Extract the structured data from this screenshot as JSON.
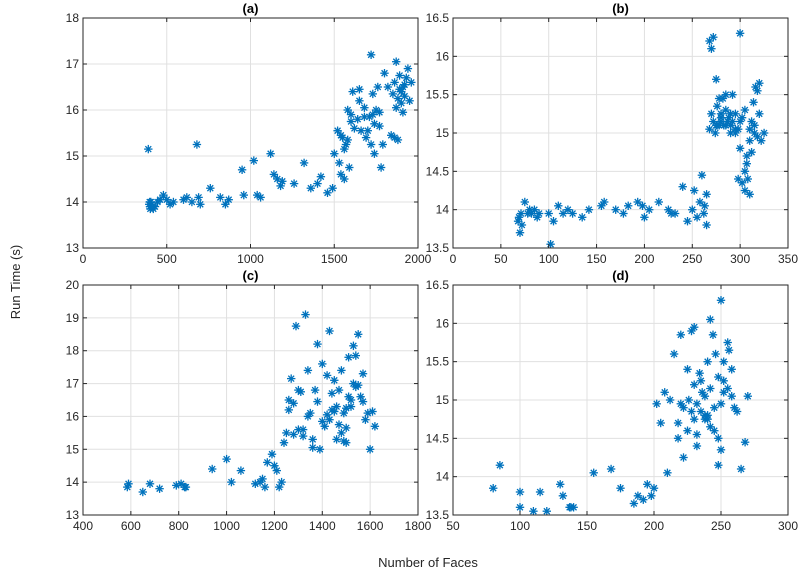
{
  "figure": {
    "ylabel": "Run Time (s)",
    "xlabel": "Number of Faces"
  },
  "chart_data": [
    {
      "type": "scatter",
      "title": "(a)",
      "xlim": [
        0,
        2000
      ],
      "ylim": [
        13,
        18
      ],
      "xticks": [
        0,
        500,
        1000,
        1500,
        2000
      ],
      "yticks": [
        13,
        14,
        15,
        16,
        17,
        18
      ],
      "grid": true,
      "x": [
        390,
        395,
        398,
        400,
        402,
        405,
        410,
        420,
        430,
        445,
        460,
        480,
        500,
        520,
        540,
        600,
        620,
        650,
        680,
        700,
        690,
        760,
        820,
        850,
        870,
        950,
        960,
        1020,
        1040,
        1060,
        1120,
        1140,
        1160,
        1180,
        1190,
        1260,
        1320,
        1360,
        1400,
        1420,
        1460,
        1490,
        1500,
        1520,
        1530,
        1540,
        1550,
        1560,
        1570,
        1580,
        1590,
        1600,
        1610,
        1620,
        1640,
        1650,
        1660,
        1680,
        1690,
        1700,
        1710,
        1720,
        1730,
        1740,
        1750,
        1760,
        1770,
        1780,
        1790,
        1800,
        1820,
        1840,
        1850,
        1860,
        1870,
        1880,
        1890,
        1900,
        1910,
        1920,
        1930,
        1940,
        1950,
        1960,
        1880,
        1900,
        1920,
        1860,
        1870,
        1890,
        1910,
        1730,
        1770,
        1740,
        1650,
        1680,
        1720,
        1600,
        1560,
        1540,
        1580
      ],
      "y": [
        15.15,
        13.95,
        14.0,
        13.9,
        13.85,
        14.0,
        13.95,
        13.85,
        13.9,
        14.0,
        14.05,
        14.15,
        14.05,
        13.95,
        14.0,
        14.05,
        14.1,
        14.0,
        15.25,
        13.95,
        14.1,
        14.3,
        14.1,
        13.95,
        14.05,
        14.7,
        14.15,
        14.9,
        14.15,
        14.1,
        15.05,
        14.6,
        14.5,
        14.35,
        14.45,
        14.4,
        14.85,
        14.3,
        14.4,
        14.55,
        14.2,
        14.3,
        15.05,
        15.55,
        14.85,
        14.6,
        15.4,
        14.5,
        15.25,
        15.35,
        14.75,
        15.75,
        16.4,
        15.6,
        15.8,
        16.45,
        15.55,
        16.05,
        15.4,
        15.55,
        15.85,
        17.2,
        15.9,
        15.7,
        16.0,
        16.5,
        15.95,
        14.75,
        15.25,
        16.8,
        16.5,
        15.45,
        16.35,
        16.6,
        17.05,
        16.25,
        16.75,
        16.4,
        16.5,
        16.55,
        16.7,
        16.9,
        16.2,
        16.6,
        15.35,
        16.15,
        16.3,
        15.4,
        16.05,
        16.45,
        15.95,
        16.35,
        15.65,
        15.05,
        16.2,
        15.85,
        15.25,
        15.9,
        15.15,
        15.45,
        16.0
      ]
    },
    {
      "type": "scatter",
      "title": "(b)",
      "xlim": [
        0,
        350
      ],
      "ylim": [
        13.5,
        16.5
      ],
      "xticks": [
        0,
        50,
        100,
        150,
        200,
        250,
        300,
        350
      ],
      "yticks": [
        13.5,
        14,
        14.5,
        15,
        15.5,
        16,
        16.5
      ],
      "grid": true,
      "x": [
        68,
        69,
        70,
        71,
        72,
        75,
        78,
        80,
        82,
        85,
        88,
        90,
        100,
        102,
        105,
        110,
        115,
        120,
        125,
        135,
        142,
        155,
        158,
        170,
        178,
        183,
        193,
        198,
        200,
        205,
        215,
        225,
        228,
        232,
        240,
        245,
        250,
        252,
        255,
        258,
        260,
        262,
        263,
        265,
        265,
        268,
        270,
        272,
        275,
        276,
        278,
        280,
        282,
        285,
        288,
        290,
        292,
        295,
        298,
        300,
        302,
        305,
        307,
        308,
        310,
        312,
        314,
        316,
        318,
        320,
        322,
        325,
        318,
        315,
        312,
        310,
        307,
        305,
        302,
        300,
        298,
        295,
        292,
        290,
        287,
        285,
        283,
        280,
        278,
        276,
        274,
        272,
        270,
        268,
        275,
        280,
        285,
        290,
        295,
        300,
        305,
        310,
        315,
        320
      ],
      "y": [
        13.85,
        13.9,
        13.7,
        13.95,
        13.8,
        14.1,
        13.95,
        14.0,
        13.95,
        14.0,
        13.9,
        13.95,
        13.95,
        13.55,
        13.85,
        14.05,
        13.95,
        14.0,
        13.95,
        13.9,
        14.0,
        14.05,
        14.1,
        14.0,
        13.95,
        14.05,
        14.1,
        14.05,
        13.9,
        14.0,
        14.1,
        14.0,
        13.95,
        13.95,
        14.3,
        13.85,
        14.0,
        14.25,
        13.9,
        14.1,
        14.45,
        13.95,
        14.05,
        13.8,
        14.2,
        16.2,
        16.1,
        16.25,
        15.7,
        15.35,
        15.1,
        15.25,
        15.45,
        15.5,
        15.2,
        15.1,
        15.15,
        15.25,
        15.05,
        15.15,
        15.2,
        15.3,
        14.6,
        14.4,
        14.9,
        15.15,
        15.4,
        15.6,
        15.55,
        15.25,
        14.9,
        15.0,
        14.95,
        15.1,
        14.75,
        15.05,
        14.7,
        14.25,
        14.35,
        14.8,
        14.4,
        15.05,
        15.5,
        15.0,
        15.15,
        15.3,
        15.1,
        15.2,
        15.45,
        15.1,
        15.0,
        15.15,
        15.25,
        15.05,
        15.1,
        15.15,
        15.1,
        15.25,
        15.0,
        16.3,
        14.5,
        14.2,
        15.0,
        15.65
      ]
    },
    {
      "type": "scatter",
      "title": "(c)",
      "xlim": [
        400,
        1800
      ],
      "ylim": [
        13,
        20
      ],
      "xticks": [
        400,
        600,
        800,
        1000,
        1200,
        1400,
        1600,
        1800
      ],
      "yticks": [
        13,
        14,
        15,
        16,
        17,
        18,
        19,
        20
      ],
      "grid": true,
      "x": [
        585,
        590,
        650,
        680,
        720,
        790,
        810,
        825,
        830,
        940,
        1000,
        1020,
        1060,
        1120,
        1140,
        1150,
        1160,
        1170,
        1190,
        1200,
        1210,
        1220,
        1230,
        1240,
        1250,
        1260,
        1270,
        1280,
        1290,
        1300,
        1310,
        1320,
        1330,
        1340,
        1350,
        1360,
        1370,
        1380,
        1390,
        1400,
        1410,
        1420,
        1430,
        1440,
        1450,
        1460,
        1470,
        1480,
        1490,
        1500,
        1510,
        1520,
        1530,
        1540,
        1550,
        1560,
        1570,
        1580,
        1590,
        1600,
        1610,
        1620,
        1530,
        1520,
        1500,
        1480,
        1460,
        1440,
        1420,
        1400,
        1380,
        1360,
        1340,
        1320,
        1300,
        1280,
        1260,
        1540,
        1550,
        1500,
        1470,
        1450,
        1430,
        1510,
        1490,
        1570
      ],
      "y": [
        13.85,
        13.95,
        13.7,
        13.95,
        13.8,
        13.9,
        13.95,
        13.85,
        13.85,
        14.4,
        14.7,
        14.0,
        14.35,
        13.95,
        14.0,
        14.1,
        13.85,
        14.6,
        14.85,
        14.5,
        14.35,
        13.85,
        14.0,
        15.2,
        15.5,
        16.5,
        17.15,
        16.4,
        18.75,
        15.6,
        16.75,
        15.4,
        19.1,
        17.4,
        16.1,
        15.3,
        16.8,
        18.2,
        15.0,
        17.6,
        15.7,
        16.05,
        18.6,
        16.2,
        17.1,
        15.3,
        16.8,
        17.4,
        16.1,
        15.65,
        17.8,
        16.3,
        18.15,
        16.9,
        18.5,
        16.6,
        17.3,
        15.9,
        16.1,
        15.0,
        16.15,
        15.7,
        17.0,
        16.5,
        15.2,
        15.5,
        16.3,
        16.7,
        17.25,
        15.85,
        16.45,
        15.05,
        16.0,
        15.6,
        16.8,
        15.45,
        16.2,
        17.85,
        16.95,
        16.25,
        15.75,
        16.15,
        15.9,
        16.6,
        15.25,
        16.45
      ]
    },
    {
      "type": "scatter",
      "title": "(d)",
      "xlim": [
        50,
        300
      ],
      "ylim": [
        13.5,
        16.5
      ],
      "xticks": [
        50,
        100,
        150,
        200,
        250,
        300
      ],
      "yticks": [
        13.5,
        14,
        14.5,
        15,
        15.5,
        16,
        16.5
      ],
      "grid": true,
      "x": [
        80,
        85,
        100,
        100,
        110,
        115,
        120,
        130,
        132,
        137,
        138,
        140,
        155,
        168,
        175,
        185,
        188,
        192,
        195,
        198,
        200,
        202,
        205,
        208,
        210,
        212,
        215,
        218,
        220,
        222,
        225,
        228,
        230,
        232,
        235,
        238,
        240,
        242,
        245,
        248,
        250,
        252,
        255,
        258,
        262,
        265,
        268,
        270,
        250,
        248,
        245,
        242,
        240,
        238,
        235,
        232,
        230,
        228,
        225,
        222,
        220,
        218,
        252,
        255,
        250,
        246,
        242,
        238,
        234,
        230,
        226,
        258,
        260,
        256,
        252,
        248,
        244,
        240,
        236,
        232
      ],
      "y": [
        13.85,
        14.15,
        13.6,
        13.8,
        13.55,
        13.8,
        13.55,
        13.9,
        13.75,
        13.6,
        13.6,
        13.6,
        14.05,
        14.1,
        13.85,
        13.65,
        13.75,
        13.7,
        13.9,
        13.75,
        13.85,
        14.95,
        14.7,
        15.1,
        14.05,
        15.0,
        15.6,
        14.5,
        15.85,
        14.9,
        15.4,
        14.85,
        15.95,
        14.4,
        15.25,
        14.75,
        15.5,
        16.05,
        14.9,
        15.3,
        16.3,
        15.1,
        15.75,
        15.4,
        14.85,
        14.1,
        14.45,
        15.05,
        14.35,
        14.15,
        14.6,
        15.15,
        14.75,
        15.05,
        14.85,
        14.55,
        15.2,
        15.9,
        14.6,
        14.25,
        14.95,
        14.7,
        15.5,
        15.15,
        14.95,
        15.6,
        14.65,
        14.8,
        15.35,
        14.75,
        15.0,
        15.05,
        14.9,
        15.65,
        15.25,
        14.5,
        15.85,
        14.8,
        15.1,
        14.95
      ]
    }
  ]
}
